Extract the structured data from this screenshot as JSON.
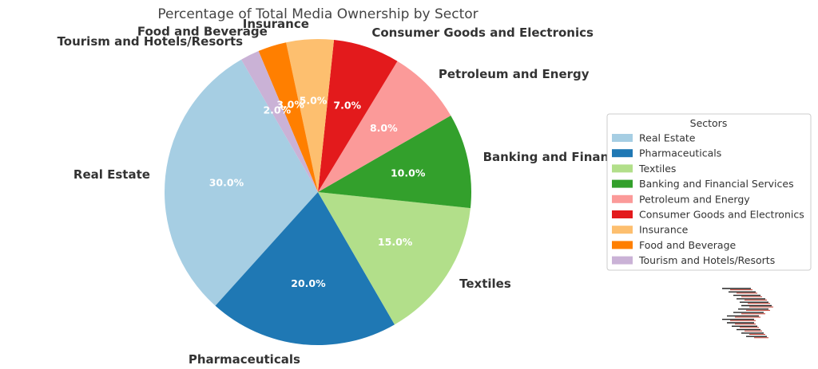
{
  "chart_data": {
    "type": "pie",
    "title": "Percentage of Total Media Ownership by Sector",
    "categories": [
      "Real Estate",
      "Pharmaceuticals",
      "Textiles",
      "Banking and Financial Services",
      "Petroleum and Energy",
      "Consumer Goods and Electronics",
      "Insurance",
      "Food and Beverage",
      "Tourism and Hotels/Resorts"
    ],
    "values": [
      30,
      20,
      15,
      10,
      8,
      7,
      5,
      3,
      2
    ],
    "value_labels": [
      "30.0%",
      "20.0%",
      "15.0%",
      "10.0%",
      "8.0%",
      "7.0%",
      "5.0%",
      "3.0%",
      "2.0%"
    ],
    "colors": [
      "#a6cee3",
      "#1f78b4",
      "#b2df8a",
      "#33a02c",
      "#fb9a99",
      "#e31a1c",
      "#fdbf6f",
      "#ff7f00",
      "#cab2d6"
    ],
    "start_angle_deg": 120,
    "direction": "counterclockwise",
    "legend": {
      "title": "Sectors",
      "placement": "right"
    },
    "watermark": "decorative-striped-logo-icon"
  }
}
